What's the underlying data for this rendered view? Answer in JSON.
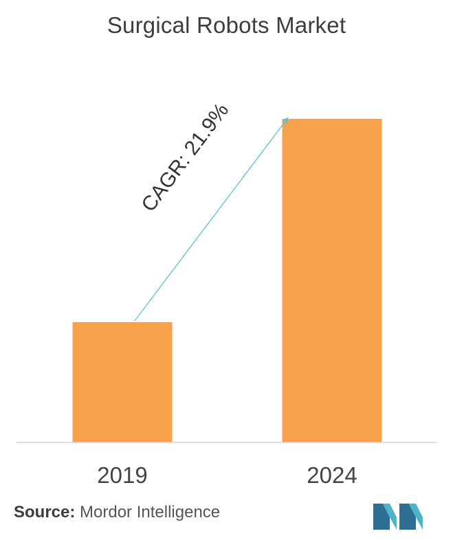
{
  "colors": {
    "bar": "#F9A04A",
    "arrow": "#5BC0D6",
    "axis": "#D5D5D5",
    "logo_dark": "#2F6F94",
    "logo_light": "#4FB3C9"
  },
  "chart_data": {
    "type": "bar",
    "title": "Surgical Robots Market",
    "categories": [
      "2019",
      "2024"
    ],
    "values": [
      1,
      2.69
    ],
    "xlabel": "",
    "ylabel": "",
    "ylim": [
      0,
      2.69
    ],
    "grid": false,
    "legend": "none",
    "annotation": {
      "text": "CAGR: 21.9%",
      "type": "arrow",
      "from": "2019",
      "to": "2024"
    }
  },
  "footer": {
    "source_label": "Source:",
    "source_text": "Mordor Intelligence",
    "logo_icon": "mordor-intelligence-logo-icon"
  }
}
